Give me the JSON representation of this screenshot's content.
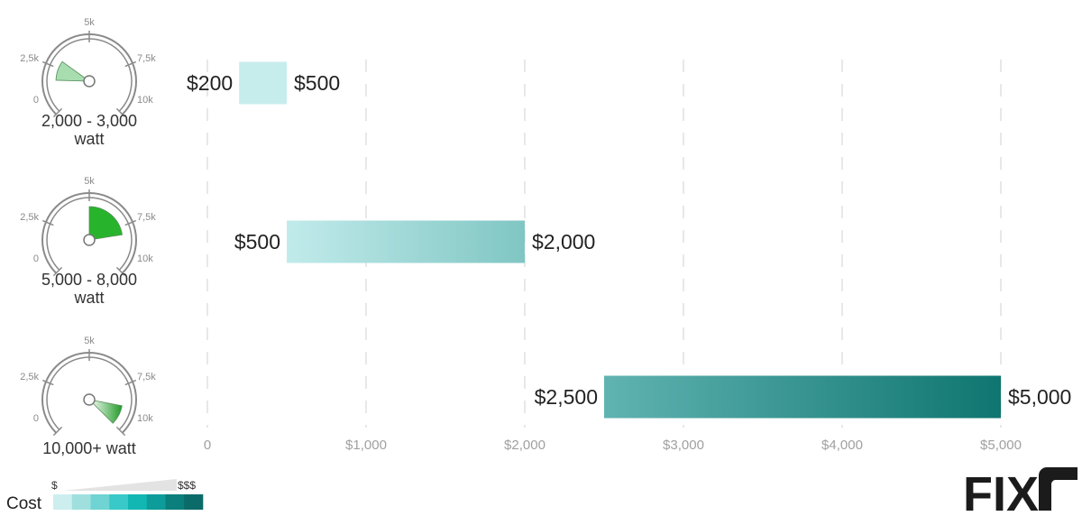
{
  "chart_data": {
    "type": "bar",
    "orientation": "horizontal",
    "subtype": "floating range bars",
    "categories": [
      "2,000 - 3,000\nwatt",
      "5,000 - 8,000\nwatt",
      "10,000+ watt"
    ],
    "ranges": [
      {
        "low": 200,
        "high": 500,
        "low_label": "$200",
        "high_label": "$500",
        "cost_level": 0.15,
        "color_from": "#c7ecec",
        "color_to": "#c7ecec"
      },
      {
        "low": 500,
        "high": 2000,
        "low_label": "$500",
        "high_label": "$2,000",
        "cost_level": 0.4,
        "color_from": "#c1ebeb",
        "color_to": "#80c6c3"
      },
      {
        "low": 2500,
        "high": 5000,
        "low_label": "$2,500",
        "high_label": "$5,000",
        "cost_level": 1.0,
        "color_from": "#60b3b1",
        "color_to": "#0f7570"
      }
    ],
    "xlim": [
      0,
      5000
    ],
    "xticks": [
      0,
      1000,
      2000,
      3000,
      4000,
      5000
    ],
    "xtick_labels": [
      "0",
      "$1,000",
      "$2,000",
      "$3,000",
      "$4,000",
      "$5,000"
    ],
    "grid": true,
    "gauges": {
      "range": [
        0,
        10000
      ],
      "tick_values": [
        0,
        2500,
        5000,
        7500,
        10000
      ],
      "tick_labels": [
        "0",
        "2,5k",
        "5k",
        "7,5k",
        "10k"
      ],
      "items": [
        {
          "from": 2000,
          "to": 3000,
          "color": "#a8ddb0"
        },
        {
          "from": 5000,
          "to": 8000,
          "color": "#27b42c"
        },
        {
          "from": 10000,
          "to": 10000,
          "color": "#1f9a26"
        }
      ]
    }
  },
  "legend": {
    "title": "Cost",
    "low_symbol": "$",
    "high_symbol": "$$$",
    "swatches": [
      "#cdeeee",
      "#9fe0df",
      "#6fd4d3",
      "#38c9c8",
      "#12b6b3",
      "#0d9c99",
      "#0a7f7c",
      "#0b6b68"
    ]
  },
  "brand": {
    "logo_text": "FIX",
    "accent": "#1b1b1b"
  }
}
